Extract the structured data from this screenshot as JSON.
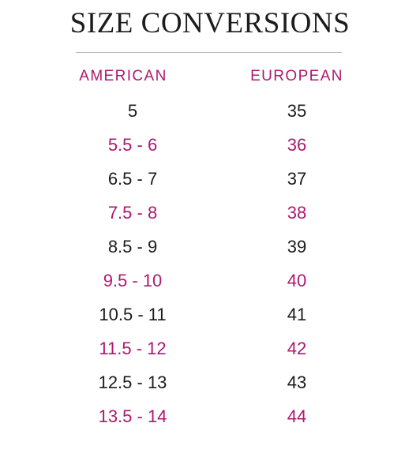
{
  "title": "SIZE CONVERSIONS",
  "colors": {
    "accent": "#b0176f",
    "text": "#1c1c1c",
    "divider": "#b9b9b9"
  },
  "headers": {
    "american": "AMERICAN",
    "european": "EUROPEAN"
  },
  "rows": [
    {
      "american": "5",
      "european": "35",
      "highlight": false
    },
    {
      "american": "5.5 - 6",
      "european": "36",
      "highlight": true
    },
    {
      "american": "6.5 - 7",
      "european": "37",
      "highlight": false
    },
    {
      "american": "7.5 - 8",
      "european": "38",
      "highlight": true
    },
    {
      "american": "8.5 - 9",
      "european": "39",
      "highlight": false
    },
    {
      "american": "9.5 - 10",
      "european": "40",
      "highlight": true
    },
    {
      "american": "10.5 - 11",
      "european": "41",
      "highlight": false
    },
    {
      "american": "11.5 - 12",
      "european": "42",
      "highlight": true
    },
    {
      "american": "12.5 - 13",
      "european": "43",
      "highlight": false
    },
    {
      "american": "13.5 - 14",
      "european": "44",
      "highlight": true
    }
  ]
}
